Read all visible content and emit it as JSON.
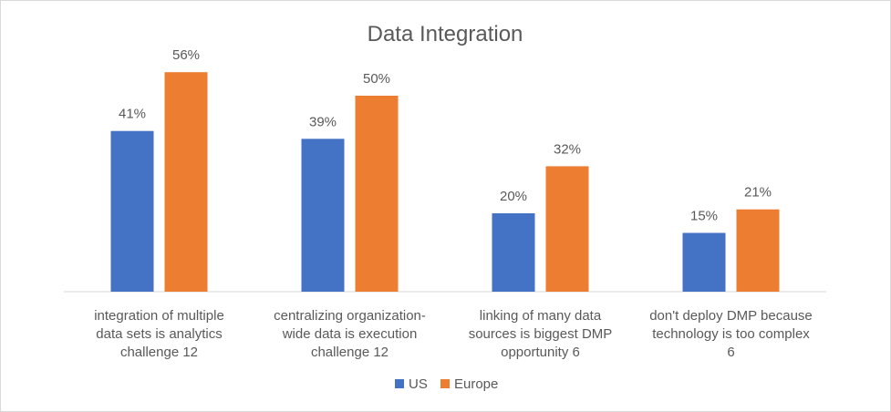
{
  "chart_data": {
    "type": "bar",
    "title": "Data Integration",
    "xlabel": "",
    "ylabel": "",
    "ylim": [
      0,
      60
    ],
    "grid": false,
    "legend": "bottom",
    "categories": [
      [
        "integration of multiple",
        "data sets is analytics",
        "challenge 12"
      ],
      [
        "centralizing organization-",
        "wide data is execution",
        "challenge 12"
      ],
      [
        "linking of many data",
        "sources is biggest DMP",
        "opportunity 6"
      ],
      [
        "don't deploy DMP because",
        "technology is too complex",
        "6"
      ]
    ],
    "series": [
      {
        "name": "US",
        "color": "#4472c4",
        "values": [
          41,
          39,
          20,
          15
        ],
        "labels": [
          "41%",
          "39%",
          "20%",
          "15%"
        ]
      },
      {
        "name": "Europe",
        "color": "#ed7d31",
        "values": [
          56,
          50,
          32,
          21
        ],
        "labels": [
          "56%",
          "50%",
          "32%",
          "21%"
        ]
      }
    ]
  }
}
